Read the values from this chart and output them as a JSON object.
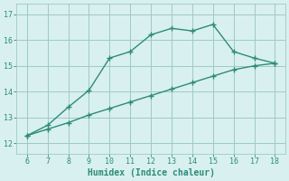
{
  "line1_x": [
    6,
    7,
    8,
    9,
    10,
    11,
    12,
    13,
    14,
    15,
    16,
    17,
    18
  ],
  "line1_y": [
    12.3,
    12.7,
    13.4,
    14.05,
    15.3,
    15.55,
    16.2,
    16.45,
    16.35,
    16.6,
    15.55,
    15.3,
    15.1
  ],
  "line2_x": [
    6,
    7,
    8,
    9,
    10,
    11,
    12,
    13,
    14,
    15,
    16,
    17,
    18
  ],
  "line2_y": [
    12.3,
    12.55,
    12.8,
    13.1,
    13.35,
    13.6,
    13.85,
    14.1,
    14.35,
    14.6,
    14.85,
    15.0,
    15.1
  ],
  "line_color": "#2e8b7a",
  "bg_color": "#d8f0f0",
  "grid_color": "#a0c8c8",
  "xlabel": "Humidex (Indice chaleur)",
  "xlabel_fontsize": 7,
  "xticks": [
    6,
    7,
    8,
    9,
    10,
    11,
    12,
    13,
    14,
    15,
    16,
    17,
    18
  ],
  "yticks": [
    12,
    13,
    14,
    15,
    16,
    17
  ],
  "xlim": [
    5.5,
    18.5
  ],
  "ylim": [
    11.6,
    17.4
  ]
}
